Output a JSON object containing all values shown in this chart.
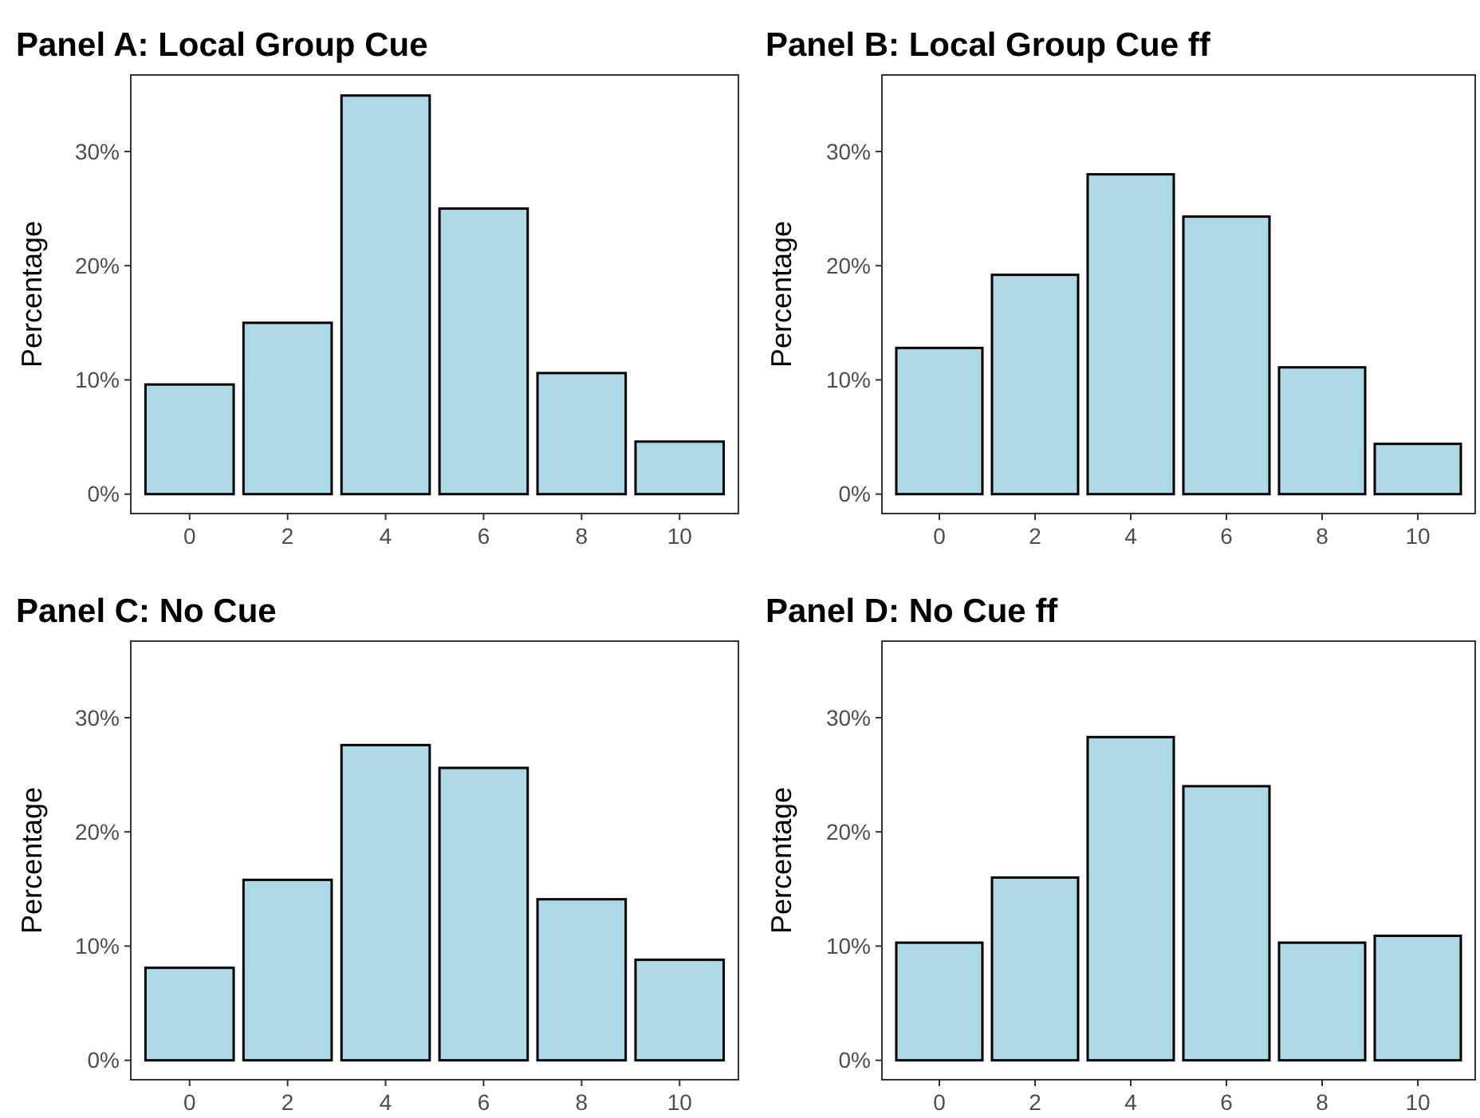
{
  "chart_data": [
    {
      "type": "bar",
      "title": "Panel A: Local Group Cue",
      "ylabel": "Percentage",
      "categories": [
        "0",
        "2",
        "4",
        "6",
        "8",
        "10"
      ],
      "values": [
        9.6,
        15.0,
        34.9,
        25.0,
        10.6,
        4.6
      ],
      "color": "#add8e6",
      "ylim": [
        -1.7,
        36.7
      ],
      "yticks": [
        {
          "value": 0,
          "label": "0%"
        },
        {
          "value": 10,
          "label": "10%"
        },
        {
          "value": 20,
          "label": "20%"
        },
        {
          "value": 30,
          "label": "30%"
        }
      ],
      "grid": false
    },
    {
      "type": "bar",
      "title": "Panel B: Local Group Cue ff",
      "ylabel": "Percentage",
      "categories": [
        "0",
        "2",
        "4",
        "6",
        "8",
        "10"
      ],
      "values": [
        12.8,
        19.2,
        28.0,
        24.3,
        11.1,
        4.4
      ],
      "color": "#add8e6",
      "ylim": [
        -1.7,
        36.7
      ],
      "yticks": [
        {
          "value": 0,
          "label": "0%"
        },
        {
          "value": 10,
          "label": "10%"
        },
        {
          "value": 20,
          "label": "20%"
        },
        {
          "value": 30,
          "label": "30%"
        }
      ],
      "grid": false
    },
    {
      "type": "bar",
      "title": "Panel C: No Cue",
      "ylabel": "Percentage",
      "categories": [
        "0",
        "2",
        "4",
        "6",
        "8",
        "10"
      ],
      "values": [
        8.1,
        15.8,
        27.6,
        25.6,
        14.1,
        8.8
      ],
      "color": "#add8e6",
      "ylim": [
        -1.7,
        36.7
      ],
      "yticks": [
        {
          "value": 0,
          "label": "0%"
        },
        {
          "value": 10,
          "label": "10%"
        },
        {
          "value": 20,
          "label": "20%"
        },
        {
          "value": 30,
          "label": "30%"
        }
      ],
      "grid": false
    },
    {
      "type": "bar",
      "title": "Panel D: No Cue ff",
      "ylabel": "Percentage",
      "categories": [
        "0",
        "2",
        "4",
        "6",
        "8",
        "10"
      ],
      "values": [
        10.3,
        16.0,
        28.3,
        24.0,
        10.3,
        10.9
      ],
      "color": "#add8e6",
      "ylim": [
        -1.7,
        36.7
      ],
      "yticks": [
        {
          "value": 0,
          "label": "0%"
        },
        {
          "value": 10,
          "label": "10%"
        },
        {
          "value": 20,
          "label": "20%"
        },
        {
          "value": 30,
          "label": "30%"
        }
      ],
      "grid": false
    }
  ]
}
